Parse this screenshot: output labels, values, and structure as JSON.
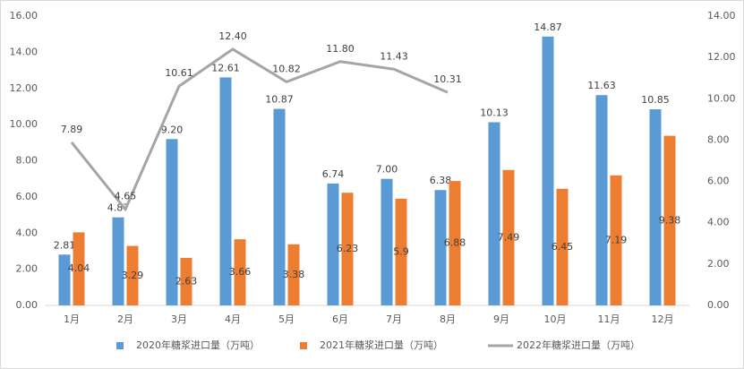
{
  "chart_data": {
    "type": "bar_line",
    "categories": [
      "1月",
      "2月",
      "3月",
      "4月",
      "5月",
      "6月",
      "7月",
      "8月",
      "9月",
      "10月",
      "11月",
      "12月"
    ],
    "series": [
      {
        "name": "2020年糖浆进口量（万吨）",
        "color": "#5b9bd5",
        "type": "bar",
        "values": [
          2.81,
          4.87,
          9.2,
          12.61,
          10.87,
          6.74,
          7.0,
          6.38,
          10.13,
          14.87,
          11.63,
          10.85
        ],
        "value_labels": [
          "2.81",
          "4.87",
          "9.20",
          "12.61",
          "10.87",
          "6.74",
          "7.00",
          "6.38",
          "10.13",
          "14.87",
          "11.63",
          "10.85"
        ]
      },
      {
        "name": "2021年糖浆进口量（万吨）",
        "color": "#ed7d31",
        "type": "bar",
        "values": [
          4.04,
          3.29,
          2.63,
          3.66,
          3.38,
          6.23,
          5.9,
          6.88,
          7.49,
          6.45,
          7.19,
          9.38
        ]
      },
      {
        "name": "2022年糖浆进口量（万吨）",
        "color": "#a5a5a5",
        "type": "line",
        "axis": "y2",
        "values": [
          7.89,
          4.65,
          10.61,
          12.4,
          10.82,
          11.8,
          11.43,
          10.31,
          null,
          null,
          null,
          null
        ],
        "value_labels": [
          "7.89",
          "4.65",
          "10.61",
          "12.40",
          "10.82",
          "11.80",
          "11.43",
          "10.31",
          null,
          null,
          null,
          null
        ]
      }
    ],
    "ylim": [
      0,
      16
    ],
    "yticks": [
      {
        "value": 0,
        "label": "0.00"
      },
      {
        "value": 2,
        "label": "2.00"
      },
      {
        "value": 4,
        "label": "4.00"
      },
      {
        "value": 6,
        "label": "6.00"
      },
      {
        "value": 8,
        "label": "8.00"
      },
      {
        "value": 10,
        "label": "10.00"
      },
      {
        "value": 12,
        "label": "12.00"
      },
      {
        "value": 14,
        "label": "14.00"
      },
      {
        "value": 16,
        "label": "16.00"
      }
    ],
    "y2lim": [
      0,
      14
    ],
    "y2ticks": [
      {
        "value": 0,
        "label": "0.00"
      },
      {
        "value": 2,
        "label": "2.00"
      },
      {
        "value": 4,
        "label": "4.00"
      },
      {
        "value": 6,
        "label": "6.00"
      },
      {
        "value": 8,
        "label": "8.00"
      },
      {
        "value": 10,
        "label": "10.00"
      },
      {
        "value": 12,
        "label": "12.00"
      },
      {
        "value": 14,
        "label": "14.00"
      }
    ]
  }
}
